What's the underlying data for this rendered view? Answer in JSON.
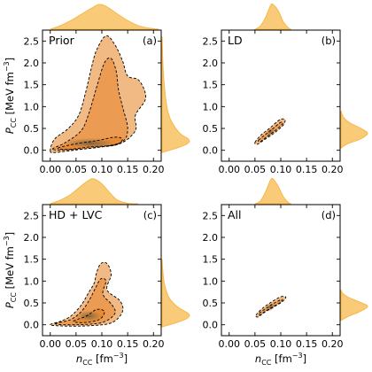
{
  "chart_data": {
    "type": "contour-density-corner",
    "layout": "2x2 panels with marginal densities",
    "xlabel": "n_CC [fm^-3]",
    "ylabel": "P_CC [MeV fm^-3]",
    "xlim": [
      -0.015,
      0.215
    ],
    "ylim": [
      -0.25,
      2.75
    ],
    "xticks": [
      0.0,
      0.05,
      0.1,
      0.15,
      0.2
    ],
    "yticks": [
      0.0,
      0.5,
      1.0,
      1.5,
      2.0,
      2.5
    ],
    "xtick_labels": [
      "0.00",
      "0.05",
      "0.10",
      "0.15",
      "0.20"
    ],
    "ytick_labels": [
      "0.0",
      "0.5",
      "1.0",
      "1.5",
      "2.0",
      "2.5"
    ],
    "colors": {
      "fill_outer": "#f1ba85",
      "fill_mid": "#ec9c52",
      "fill_inner": "#e88b35",
      "core": "#7a5f3c",
      "marginal": "#f7b84a",
      "contour_line": "#000000"
    },
    "grid": false,
    "panels": [
      {
        "name": "Prior",
        "tag": "(a)",
        "mode": 0.095,
        "contour_95": [
          [
            0.0,
            -0.02
          ],
          [
            0.008,
            0.25
          ],
          [
            0.035,
            0.5
          ],
          [
            0.055,
            0.8
          ],
          [
            0.068,
            1.3
          ],
          [
            0.08,
            1.9
          ],
          [
            0.09,
            2.3
          ],
          [
            0.108,
            2.62
          ],
          [
            0.125,
            2.42
          ],
          [
            0.14,
            2.05
          ],
          [
            0.15,
            1.7
          ],
          [
            0.172,
            1.6
          ],
          [
            0.185,
            1.2
          ],
          [
            0.165,
            0.8
          ],
          [
            0.165,
            0.45
          ],
          [
            0.135,
            0.15
          ],
          [
            0.085,
            0.06
          ],
          [
            0.045,
            0.0
          ],
          [
            0.01,
            -0.05
          ]
        ],
        "contour_68": [
          [
            0.005,
            0.02
          ],
          [
            0.03,
            0.18
          ],
          [
            0.06,
            0.45
          ],
          [
            0.075,
            0.85
          ],
          [
            0.09,
            1.45
          ],
          [
            0.105,
            2.0
          ],
          [
            0.118,
            2.1
          ],
          [
            0.128,
            1.8
          ],
          [
            0.132,
            1.4
          ],
          [
            0.14,
            1.0
          ],
          [
            0.15,
            0.5
          ],
          [
            0.14,
            0.2
          ],
          [
            0.1,
            0.08
          ],
          [
            0.05,
            0.02
          ]
        ],
        "contour_inner": [
          [
            0.015,
            0.05
          ],
          [
            0.05,
            0.15
          ],
          [
            0.09,
            0.22
          ],
          [
            0.125,
            0.3
          ],
          [
            0.14,
            0.25
          ],
          [
            0.125,
            0.12
          ],
          [
            0.08,
            0.08
          ],
          [
            0.035,
            0.02
          ]
        ],
        "x_marginal": [
          [
            0.0,
            0.0
          ],
          [
            0.02,
            0.15
          ],
          [
            0.04,
            0.35
          ],
          [
            0.06,
            0.6
          ],
          [
            0.08,
            0.85
          ],
          [
            0.095,
            1.0
          ],
          [
            0.11,
            0.9
          ],
          [
            0.13,
            0.62
          ],
          [
            0.15,
            0.35
          ],
          [
            0.17,
            0.15
          ],
          [
            0.19,
            0.05
          ],
          [
            0.21,
            0.0
          ]
        ],
        "y_marginal": [
          [
            -0.05,
            0.0
          ],
          [
            0.05,
            0.55
          ],
          [
            0.15,
            0.95
          ],
          [
            0.25,
            1.0
          ],
          [
            0.4,
            0.65
          ],
          [
            0.7,
            0.32
          ],
          [
            1.0,
            0.18
          ],
          [
            1.5,
            0.08
          ],
          [
            2.0,
            0.03
          ],
          [
            2.6,
            0.0
          ]
        ]
      },
      {
        "name": "LD",
        "tag": "(b)",
        "mode": 0.085,
        "contour_95": [
          [
            0.05,
            0.18
          ],
          [
            0.062,
            0.35
          ],
          [
            0.08,
            0.52
          ],
          [
            0.098,
            0.7
          ],
          [
            0.108,
            0.7
          ],
          [
            0.105,
            0.58
          ],
          [
            0.088,
            0.4
          ],
          [
            0.068,
            0.24
          ],
          [
            0.055,
            0.14
          ]
        ],
        "contour_68": [
          [
            0.057,
            0.23
          ],
          [
            0.07,
            0.36
          ],
          [
            0.085,
            0.5
          ],
          [
            0.1,
            0.64
          ],
          [
            0.103,
            0.6
          ],
          [
            0.088,
            0.44
          ],
          [
            0.072,
            0.3
          ],
          [
            0.06,
            0.2
          ]
        ],
        "contour_inner": [],
        "x_marginal": [
          [
            0.05,
            0.0
          ],
          [
            0.06,
            0.12
          ],
          [
            0.07,
            0.45
          ],
          [
            0.08,
            0.95
          ],
          [
            0.085,
            1.0
          ],
          [
            0.095,
            0.75
          ],
          [
            0.105,
            0.3
          ],
          [
            0.115,
            0.05
          ],
          [
            0.12,
            0.0
          ]
        ],
        "y_marginal": [
          [
            0.05,
            0.0
          ],
          [
            0.15,
            0.25
          ],
          [
            0.25,
            0.7
          ],
          [
            0.38,
            1.0
          ],
          [
            0.5,
            0.75
          ],
          [
            0.62,
            0.35
          ],
          [
            0.75,
            0.1
          ],
          [
            0.9,
            0.0
          ]
        ]
      },
      {
        "name": "HD + LVC",
        "tag": "(c)",
        "mode": 0.085,
        "contour_95": [
          [
            0.0,
            0.0
          ],
          [
            0.02,
            0.08
          ],
          [
            0.04,
            0.2
          ],
          [
            0.06,
            0.45
          ],
          [
            0.075,
            0.75
          ],
          [
            0.085,
            0.95
          ],
          [
            0.09,
            1.2
          ],
          [
            0.098,
            1.4
          ],
          [
            0.11,
            1.4
          ],
          [
            0.118,
            1.15
          ],
          [
            0.11,
            0.8
          ],
          [
            0.135,
            0.55
          ],
          [
            0.14,
            0.3
          ],
          [
            0.12,
            0.05
          ],
          [
            0.08,
            -0.02
          ],
          [
            0.03,
            -0.03
          ]
        ],
        "contour_68": [
          [
            0.01,
            0.02
          ],
          [
            0.04,
            0.12
          ],
          [
            0.06,
            0.3
          ],
          [
            0.075,
            0.55
          ],
          [
            0.088,
            0.85
          ],
          [
            0.098,
            1.05
          ],
          [
            0.108,
            1.0
          ],
          [
            0.102,
            0.7
          ],
          [
            0.12,
            0.45
          ],
          [
            0.125,
            0.25
          ],
          [
            0.1,
            0.05
          ],
          [
            0.05,
            0.0
          ]
        ],
        "contour_inner": [
          [
            0.045,
            0.08
          ],
          [
            0.07,
            0.2
          ],
          [
            0.09,
            0.35
          ],
          [
            0.105,
            0.3
          ],
          [
            0.095,
            0.12
          ],
          [
            0.065,
            0.05
          ]
        ],
        "x_marginal": [
          [
            0.0,
            0.0
          ],
          [
            0.02,
            0.15
          ],
          [
            0.04,
            0.38
          ],
          [
            0.06,
            0.72
          ],
          [
            0.075,
            0.95
          ],
          [
            0.085,
            1.0
          ],
          [
            0.1,
            0.8
          ],
          [
            0.115,
            0.45
          ],
          [
            0.13,
            0.15
          ],
          [
            0.15,
            0.02
          ],
          [
            0.17,
            0.0
          ]
        ],
        "y_marginal": [
          [
            -0.05,
            0.0
          ],
          [
            0.05,
            0.55
          ],
          [
            0.15,
            0.95
          ],
          [
            0.25,
            1.0
          ],
          [
            0.4,
            0.6
          ],
          [
            0.6,
            0.28
          ],
          [
            0.9,
            0.1
          ],
          [
            1.2,
            0.03
          ],
          [
            1.5,
            0.0
          ]
        ]
      },
      {
        "name": "All",
        "tag": "(d)",
        "mode": 0.085,
        "contour_95": [
          [
            0.052,
            0.22
          ],
          [
            0.065,
            0.38
          ],
          [
            0.082,
            0.52
          ],
          [
            0.1,
            0.64
          ],
          [
            0.11,
            0.63
          ],
          [
            0.102,
            0.52
          ],
          [
            0.085,
            0.4
          ],
          [
            0.068,
            0.28
          ],
          [
            0.056,
            0.18
          ]
        ],
        "contour_68": [
          [
            0.058,
            0.26
          ],
          [
            0.072,
            0.38
          ],
          [
            0.088,
            0.5
          ],
          [
            0.102,
            0.58
          ],
          [
            0.1,
            0.52
          ],
          [
            0.086,
            0.42
          ],
          [
            0.07,
            0.31
          ],
          [
            0.061,
            0.23
          ]
        ],
        "contour_inner": [],
        "x_marginal": [
          [
            0.05,
            0.0
          ],
          [
            0.06,
            0.1
          ],
          [
            0.07,
            0.45
          ],
          [
            0.08,
            0.95
          ],
          [
            0.085,
            1.0
          ],
          [
            0.095,
            0.7
          ],
          [
            0.105,
            0.28
          ],
          [
            0.115,
            0.04
          ],
          [
            0.12,
            0.0
          ]
        ],
        "y_marginal": [
          [
            0.1,
            0.0
          ],
          [
            0.2,
            0.3
          ],
          [
            0.3,
            0.7
          ],
          [
            0.42,
            1.0
          ],
          [
            0.52,
            0.7
          ],
          [
            0.62,
            0.3
          ],
          [
            0.72,
            0.06
          ],
          [
            0.8,
            0.0
          ]
        ]
      }
    ]
  }
}
